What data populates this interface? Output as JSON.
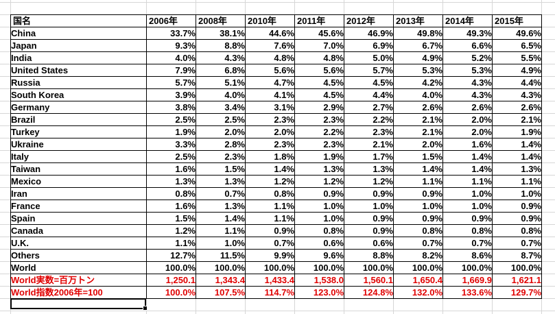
{
  "colors": {
    "grid_line": "#d6d6d6",
    "table_border": "#000000",
    "text_black": "#000000",
    "text_red": "#e00000",
    "background": "#ffffff"
  },
  "sheet": {
    "columns": [
      "国名",
      "2006年",
      "2008年",
      "2010年",
      "2011年",
      "2012年",
      "2013年",
      "2014年",
      "2015年"
    ],
    "rows": [
      {
        "label": "China",
        "color": "black",
        "values": [
          "33.7%",
          "38.1%",
          "44.6%",
          "45.6%",
          "46.9%",
          "49.8%",
          "49.3%",
          "49.6%"
        ]
      },
      {
        "label": "Japan",
        "color": "black",
        "values": [
          "9.3%",
          "8.8%",
          "7.6%",
          "7.0%",
          "6.9%",
          "6.7%",
          "6.6%",
          "6.5%"
        ]
      },
      {
        "label": "India",
        "color": "black",
        "values": [
          "4.0%",
          "4.3%",
          "4.8%",
          "4.8%",
          "5.0%",
          "4.9%",
          "5.2%",
          "5.5%"
        ]
      },
      {
        "label": "United States",
        "color": "black",
        "values": [
          "7.9%",
          "6.8%",
          "5.6%",
          "5.6%",
          "5.7%",
          "5.3%",
          "5.3%",
          "4.9%"
        ]
      },
      {
        "label": "Russia",
        "color": "black",
        "values": [
          "5.7%",
          "5.1%",
          "4.7%",
          "4.5%",
          "4.5%",
          "4.2%",
          "4.3%",
          "4.4%"
        ]
      },
      {
        "label": "South Korea",
        "color": "black",
        "values": [
          "3.9%",
          "4.0%",
          "4.1%",
          "4.5%",
          "4.4%",
          "4.0%",
          "4.3%",
          "4.3%"
        ]
      },
      {
        "label": "Germany",
        "color": "black",
        "values": [
          "3.8%",
          "3.4%",
          "3.1%",
          "2.9%",
          "2.7%",
          "2.6%",
          "2.6%",
          "2.6%"
        ]
      },
      {
        "label": "Brazil",
        "color": "black",
        "values": [
          "2.5%",
          "2.5%",
          "2.3%",
          "2.3%",
          "2.2%",
          "2.1%",
          "2.0%",
          "2.1%"
        ]
      },
      {
        "label": "Turkey",
        "color": "black",
        "values": [
          "1.9%",
          "2.0%",
          "2.0%",
          "2.2%",
          "2.3%",
          "2.1%",
          "2.0%",
          "1.9%"
        ]
      },
      {
        "label": "Ukraine",
        "color": "black",
        "values": [
          "3.3%",
          "2.8%",
          "2.3%",
          "2.3%",
          "2.1%",
          "2.0%",
          "1.6%",
          "1.4%"
        ]
      },
      {
        "label": "Italy",
        "color": "black",
        "values": [
          "2.5%",
          "2.3%",
          "1.8%",
          "1.9%",
          "1.7%",
          "1.5%",
          "1.4%",
          "1.4%"
        ]
      },
      {
        "label": "Taiwan",
        "color": "black",
        "values": [
          "1.6%",
          "1.5%",
          "1.4%",
          "1.3%",
          "1.3%",
          "1.4%",
          "1.4%",
          "1.3%"
        ]
      },
      {
        "label": "Mexico",
        "color": "black",
        "values": [
          "1.3%",
          "1.3%",
          "1.2%",
          "1.2%",
          "1.2%",
          "1.1%",
          "1.1%",
          "1.1%"
        ]
      },
      {
        "label": "Iran",
        "color": "black",
        "values": [
          "0.8%",
          "0.7%",
          "0.8%",
          "0.9%",
          "0.9%",
          "0.9%",
          "1.0%",
          "1.0%"
        ]
      },
      {
        "label": "France",
        "color": "black",
        "values": [
          "1.6%",
          "1.3%",
          "1.1%",
          "1.0%",
          "1.0%",
          "1.0%",
          "1.0%",
          "0.9%"
        ]
      },
      {
        "label": "Spain",
        "color": "black",
        "values": [
          "1.5%",
          "1.4%",
          "1.1%",
          "1.0%",
          "0.9%",
          "0.9%",
          "0.9%",
          "0.9%"
        ]
      },
      {
        "label": "Canada",
        "color": "black",
        "values": [
          "1.2%",
          "1.1%",
          "0.9%",
          "0.8%",
          "0.9%",
          "0.8%",
          "0.8%",
          "0.8%"
        ]
      },
      {
        "label": "U.K.",
        "color": "black",
        "values": [
          "1.1%",
          "1.0%",
          "0.7%",
          "0.6%",
          "0.6%",
          "0.7%",
          "0.7%",
          "0.7%"
        ]
      },
      {
        "label": "Others",
        "color": "black",
        "values": [
          "12.7%",
          "11.5%",
          "9.9%",
          "9.6%",
          "8.8%",
          "8.2%",
          "8.6%",
          "8.7%"
        ]
      },
      {
        "label": "World",
        "color": "black",
        "values": [
          "100.0%",
          "100.0%",
          "100.0%",
          "100.0%",
          "100.0%",
          "100.0%",
          "100.0%",
          "100.0%"
        ]
      },
      {
        "label": "World実数=百万トン",
        "color": "red",
        "values": [
          "1,250.1",
          "1,343.4",
          "1,433.4",
          "1,538.0",
          "1,560.1",
          "1,650.4",
          "1,669.9",
          "1,621.1"
        ]
      },
      {
        "label": "World指数2006年=100",
        "color": "red",
        "values": [
          "100.0%",
          "107.5%",
          "114.7%",
          "123.0%",
          "124.8%",
          "132.0%",
          "133.6%",
          "129.7%"
        ]
      }
    ]
  }
}
